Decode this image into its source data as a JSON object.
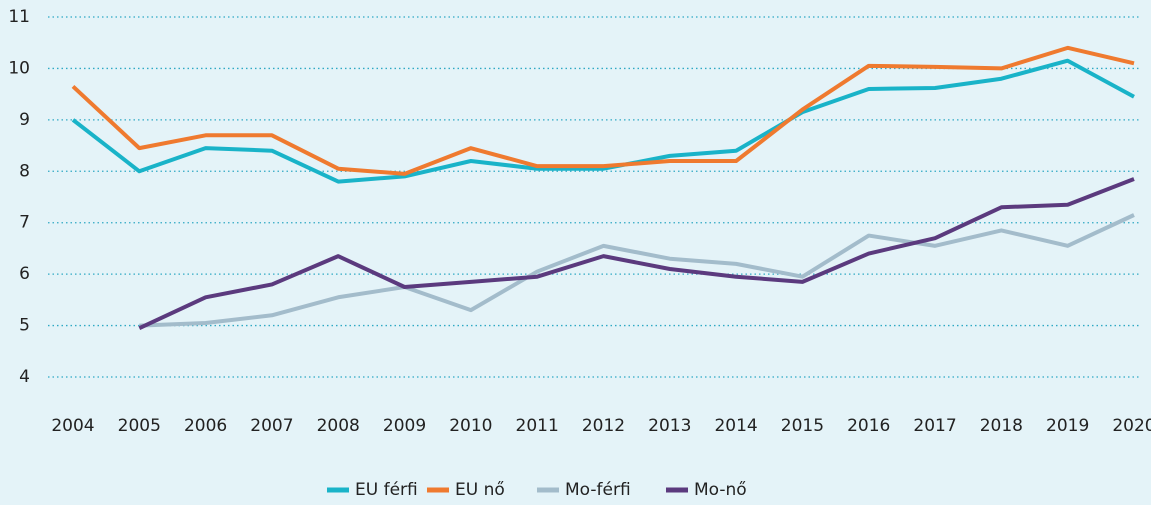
{
  "chart_data": {
    "type": "line",
    "categories": [
      "2004",
      "2005",
      "2006",
      "2007",
      "2008",
      "2009",
      "2010",
      "2011",
      "2012",
      "2013",
      "2014",
      "2015",
      "2016",
      "2017",
      "2018",
      "2019",
      "2020"
    ],
    "series": [
      {
        "name": "EU férfi",
        "color": "#19b3c8",
        "values": [
          9.0,
          8.0,
          8.45,
          8.4,
          7.8,
          7.9,
          8.2,
          8.05,
          8.05,
          8.3,
          8.4,
          9.15,
          9.6,
          9.62,
          9.8,
          10.15,
          9.45
        ]
      },
      {
        "name": "EU nő",
        "color": "#ef7a2f",
        "values": [
          9.65,
          8.45,
          8.7,
          8.7,
          8.05,
          7.95,
          8.45,
          8.1,
          8.1,
          8.2,
          8.2,
          9.2,
          10.05,
          10.03,
          10.0,
          10.4,
          10.1
        ]
      },
      {
        "name": "Mo-férfi",
        "color": "#a3bccb",
        "values": [
          null,
          5.0,
          5.05,
          5.2,
          5.55,
          5.75,
          5.3,
          6.05,
          6.55,
          6.3,
          6.2,
          5.95,
          6.75,
          6.55,
          6.85,
          6.55,
          7.15
        ]
      },
      {
        "name": "Mo-nő",
        "color": "#5b3a7e",
        "values": [
          null,
          4.95,
          5.55,
          5.8,
          6.35,
          5.75,
          5.85,
          5.95,
          6.35,
          6.1,
          5.95,
          5.85,
          6.4,
          6.7,
          7.3,
          7.35,
          7.85
        ]
      }
    ],
    "ylim": [
      4,
      11
    ],
    "yticks": [
      4,
      5,
      6,
      7,
      8,
      9,
      10,
      11
    ],
    "grid": true,
    "legend": "bottom"
  }
}
